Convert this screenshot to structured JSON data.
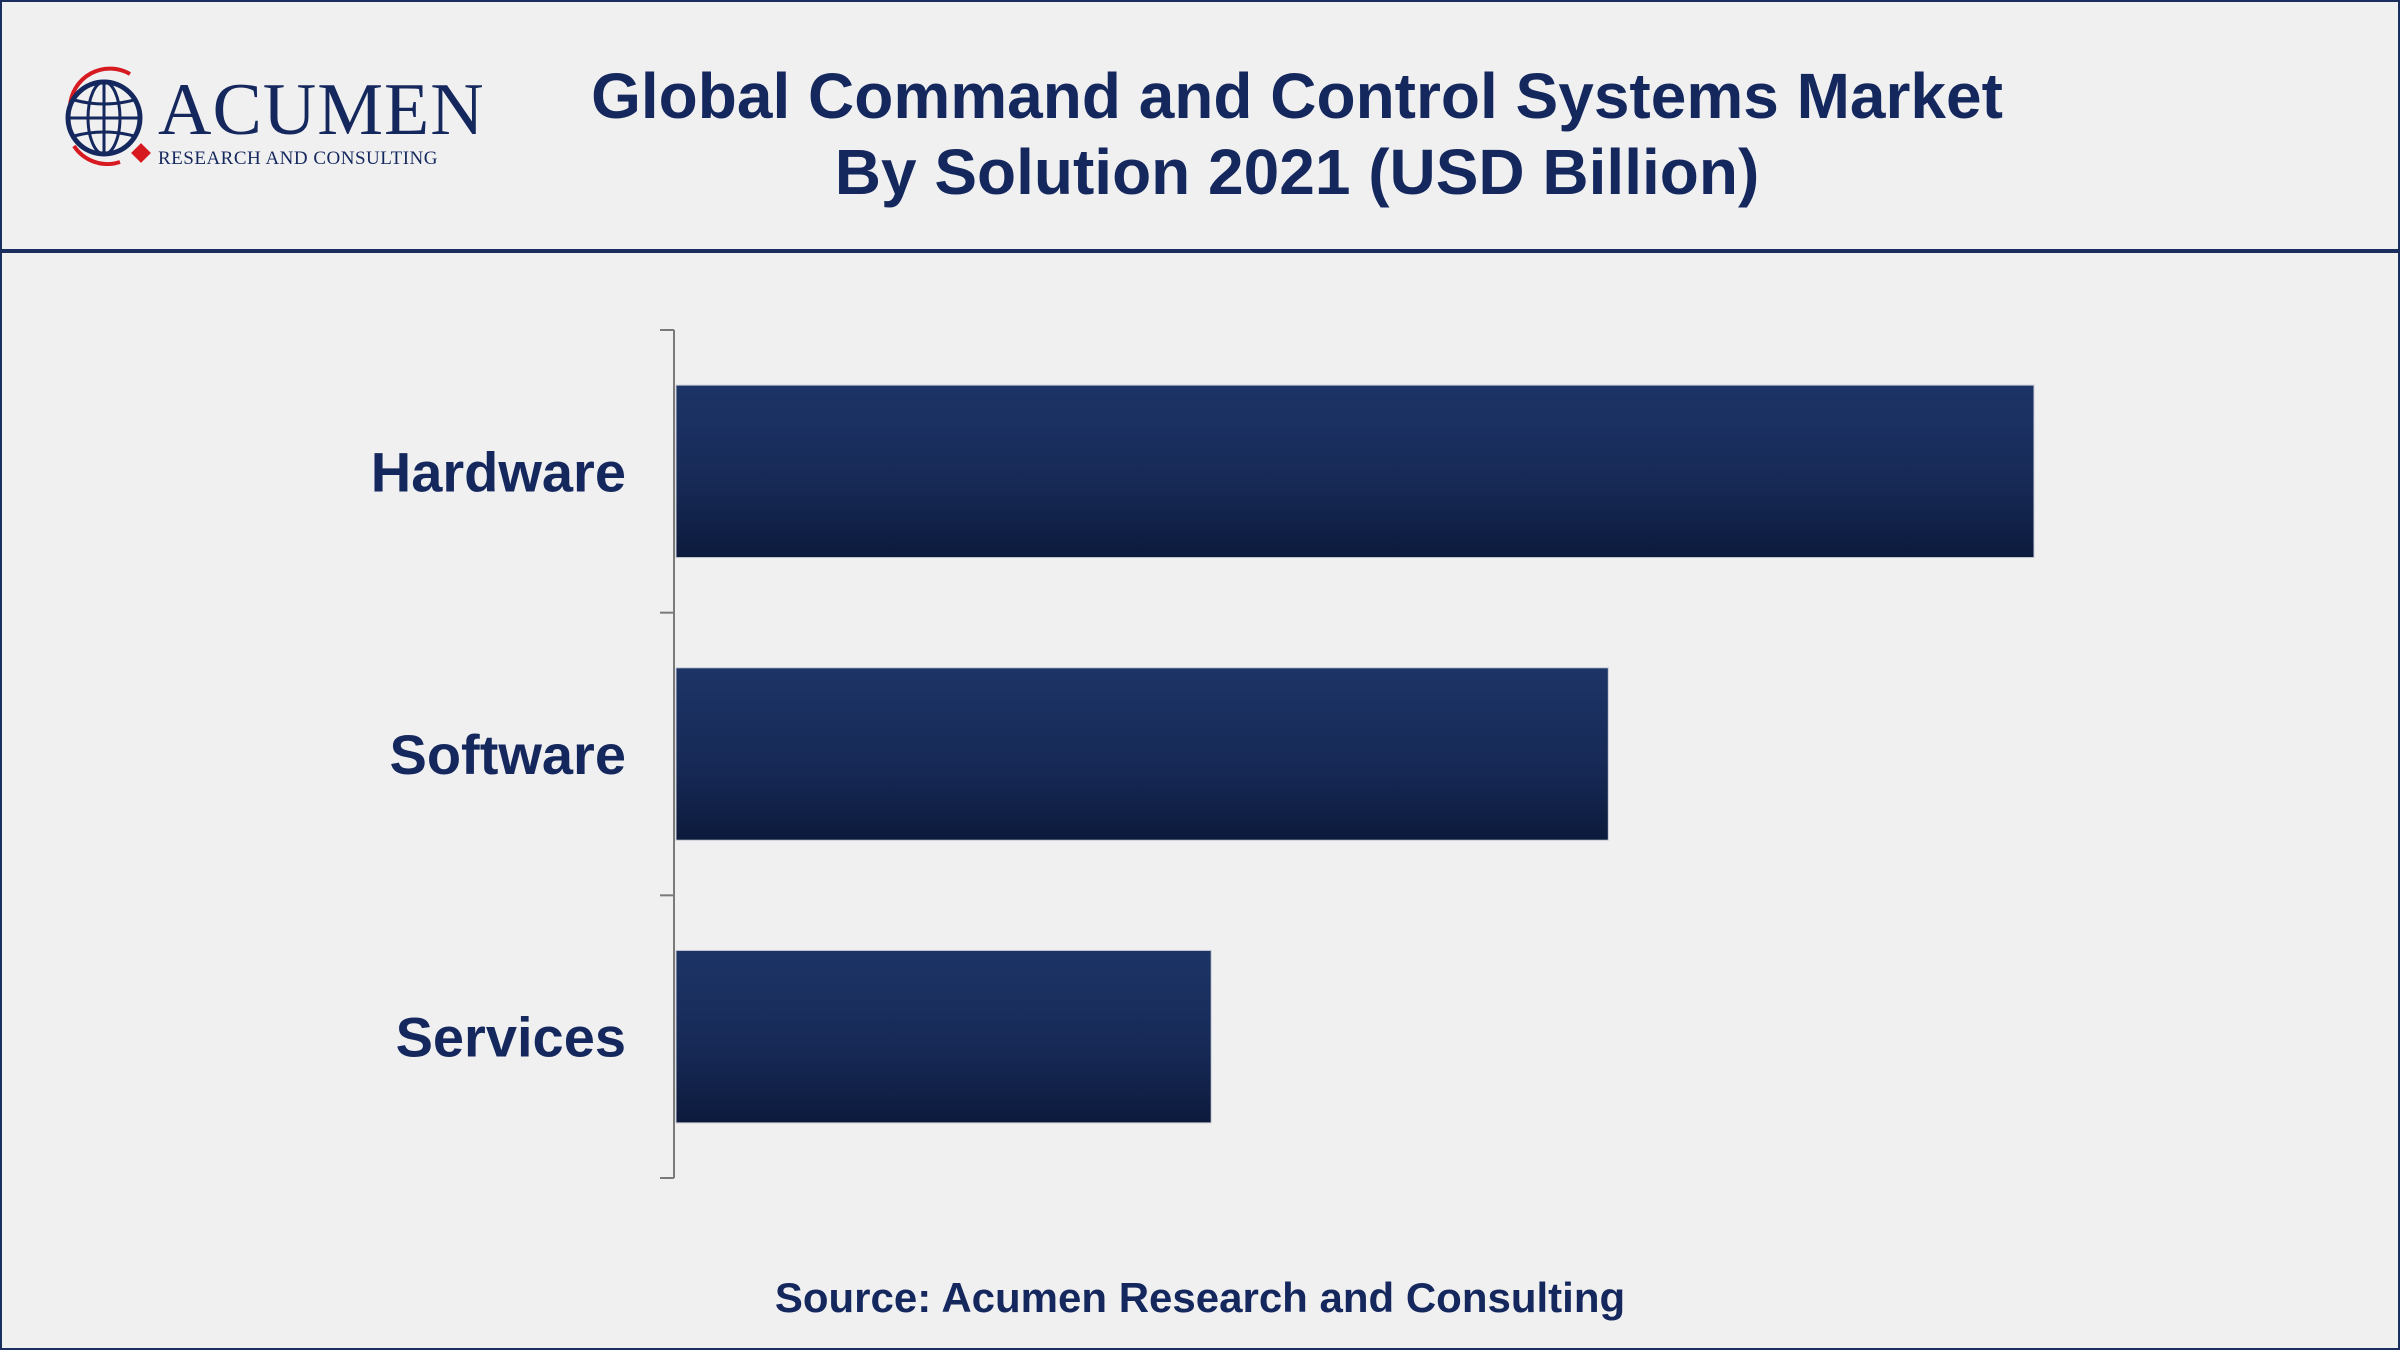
{
  "header": {
    "logo": {
      "name": "ACUMEN",
      "tagline": "RESEARCH AND CONSULTING",
      "icon": "globe-icon",
      "colors": {
        "navy": "#15285e",
        "red": "#d71920"
      }
    },
    "title_line1": "Global Command and Control Systems Market",
    "title_line2": "By Solution 2021 (USD Billion)"
  },
  "chart_data": {
    "type": "bar",
    "orientation": "horizontal",
    "categories": [
      "Hardware",
      "Software",
      "Services"
    ],
    "values": [
      100,
      68.7,
      39.5
    ],
    "xlim": [
      0,
      100
    ],
    "axis_visible": false,
    "grid": false,
    "legend": "none",
    "bar_color": "#1a2f63"
  },
  "footer": {
    "source": "Source: Acumen Research and Consulting"
  }
}
